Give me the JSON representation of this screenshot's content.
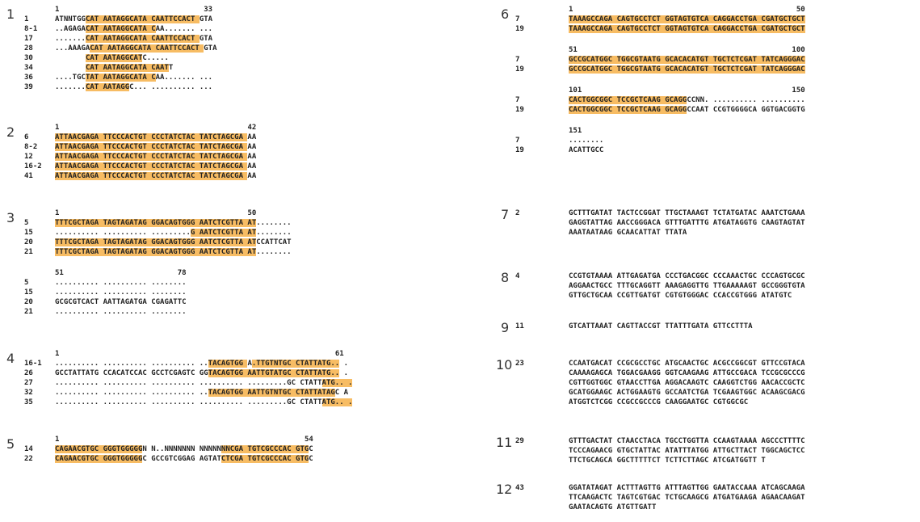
{
  "blocks": [
    {
      "num": "1",
      "rulers": [
        {
          "start": "1",
          "end": "33"
        }
      ],
      "rows": [
        {
          "id": "1",
          "seq": "ATNNTGGCAT AATAGGCATA CAATTCCACT GTA",
          "hl": [
            [
              7,
              33
            ]
          ]
        },
        {
          "id": "8-1",
          "seq": "..AGAGACAT AATAGGCATA CAA....... ...",
          "hl": [
            [
              7,
              23
            ]
          ]
        },
        {
          "id": "17",
          "seq": ".......CAT AATAGGCATA CAATTCCACT GTA",
          "hl": [
            [
              7,
              33
            ]
          ]
        },
        {
          "id": "28",
          "seq": "...AAAGACAT AATAGGCATA CAATTCCACT GTA",
          "hl": [
            [
              8,
              34
            ]
          ]
        },
        {
          "id": "30",
          "seq": "       CAT AATAGGCATC.....",
          "hl": [
            [
              7,
              20
            ]
          ]
        },
        {
          "id": "34",
          "seq": "       CAT AATAGGCATA CAATT",
          "hl": [
            [
              7,
              26
            ]
          ]
        },
        {
          "id": "36",
          "seq": "....TGCTAT AATAGGCATA CAA....... ...",
          "hl": [
            [
              7,
              23
            ]
          ]
        },
        {
          "id": "39",
          "seq": ".......CAT AATAGGC... .......... ...",
          "hl": [
            [
              7,
              17
            ]
          ]
        }
      ]
    },
    {
      "num": "2",
      "rulers": [
        {
          "start": "1",
          "end": "42"
        }
      ],
      "rows": [
        {
          "id": "6",
          "seq": "ATTAACGAGA TTCCCACTGT CCCTATCTAC TATCTAGCGA AA",
          "hl": [
            [
              0,
              44
            ]
          ]
        },
        {
          "id": "8-2",
          "seq": "ATTAACGAGA TTCCCACTGT CCCTATCTAC TATCTAGCGA AA",
          "hl": [
            [
              0,
              44
            ]
          ]
        },
        {
          "id": "12",
          "seq": "ATTAACGAGA TTCCCACTGT CCCTATCTAC TATCTAGCGA AA",
          "hl": [
            [
              0,
              44
            ]
          ]
        },
        {
          "id": "16-2",
          "seq": "ATTAACGAGA TTCCCACTGT CCCTATCTAC TATCTAGCGA AA",
          "hl": [
            [
              0,
              44
            ]
          ]
        },
        {
          "id": "41",
          "seq": "ATTAACGAGA TTCCCACTGT CCCTATCTAC TATCTAGCGA AA",
          "hl": [
            [
              0,
              44
            ]
          ]
        }
      ]
    },
    {
      "num": "3",
      "rulers": [
        {
          "start": "1",
          "end": "50"
        },
        {
          "start": "51",
          "end": "78"
        }
      ],
      "rows": [
        {
          "id": "5",
          "seq": "TTTCGCTAGA TAGTAGATAG GGACAGTGGG AATCTCGTTA AT........",
          "hl": [
            [
              0,
              46
            ]
          ]
        },
        {
          "id": "15",
          "seq": ".......... .......... .........G AATCTCGTTA AT........",
          "hl": [
            [
              31,
              46
            ]
          ]
        },
        {
          "id": "20",
          "seq": "TTTCGCTAGA TAGTAGATAG GGACAGTGGG AATCTCGTTA ATCCATTCAT",
          "hl": [
            [
              0,
              46
            ]
          ]
        },
        {
          "id": "21",
          "seq": "TTTCGCTAGA TAGTAGATAG GGACAGTGGG AATCTCGTTA AT........",
          "hl": [
            [
              0,
              46
            ]
          ]
        }
      ],
      "rows2": [
        {
          "id": "5",
          "seq": ".......... .......... ........"
        },
        {
          "id": "15",
          "seq": ".......... .......... ........"
        },
        {
          "id": "20",
          "seq": "GCGCGTCACT AATTAGATGA CGAGATTC"
        },
        {
          "id": "21",
          "seq": ".......... .......... ........"
        }
      ]
    },
    {
      "num": "4",
      "rulers": [
        {
          "start": "1",
          "end": "61"
        }
      ],
      "rows": [
        {
          "id": "16-1",
          "seq": ".......... .......... .......... ..TACAGTGG A.TTGTNTGC CTATTATG.. .",
          "hl": [
            [
              35,
              44
            ],
            [
              45,
              65
            ]
          ]
        },
        {
          "id": "26",
          "seq": "GCCTATTATG CCACATCCAC GCCTCGAGTC GGTACAGTGG AATTGTATGC CTATTATG.. .",
          "hl": [
            [
              35,
              65
            ]
          ]
        },
        {
          "id": "27",
          "seq": ".......... .......... .......... .......... .........GC CTATTATG.. .",
          "hl": [
            [
              61,
              69
            ]
          ]
        },
        {
          "id": "32",
          "seq": ".......... .......... .......... ..TACAGTGG AATTGTNTGC CTATTATAGC A",
          "hl": [
            [
              35,
              64
            ]
          ]
        },
        {
          "id": "35",
          "seq": ".......... .......... .......... .......... .........GC CTATTATG.. .",
          "hl": [
            [
              61,
              69
            ]
          ]
        }
      ]
    },
    {
      "num": "5",
      "rulers": [
        {
          "start": "1",
          "end": "54"
        }
      ],
      "rows": [
        {
          "id": "14",
          "seq": "CAGAACGTGC GGGTGGGGGN N..NNNNNNN NNNNNNNCGA TGTCGCCCAC GTGC",
          "hl": [
            [
              0,
              20
            ],
            [
              38,
              58
            ]
          ]
        },
        {
          "id": "22",
          "seq": "CAGAACGTGC GGGTGGGGGC GCCGTCGGAG AGTATCTCGA TGTCGCCCAC GTGC",
          "hl": [
            [
              0,
              20
            ],
            [
              38,
              58
            ]
          ]
        }
      ]
    },
    {
      "num": "6",
      "rulers": [
        {
          "start": "1",
          "end": "50"
        },
        {
          "start": "51",
          "end": "100"
        },
        {
          "start": "101",
          "end": "150"
        },
        {
          "start": "151",
          "end": ""
        }
      ],
      "groups": [
        [
          {
            "id": "7",
            "seq": "TAAAGCCAGA CAGTGCCTCT GGTAGTGTCA CAGGACCTGA CGATGCTGCT",
            "hl": [
              [
                0,
                54
              ]
            ]
          },
          {
            "id": "19",
            "seq": "TAAAGCCAGA CAGTGCCTCT GGTAGTGTCA CAGGACCTGA CGATGCTGCT",
            "hl": [
              [
                0,
                54
              ]
            ]
          }
        ],
        [
          {
            "id": "7",
            "seq": "GCCGCATGGC TGGCGTAATG GCACACATGT TGCTCTCGAT TATCAGGGAC",
            "hl": [
              [
                0,
                54
              ]
            ]
          },
          {
            "id": "19",
            "seq": "GCCGCATGGC TGGCGTAATG GCACACATGT TGCTCTCGAT TATCAGGGAC",
            "hl": [
              [
                0,
                54
              ]
            ]
          }
        ],
        [
          {
            "id": "7",
            "seq": "CACTGGCGGC TCCGCTCAAG GCAGGCCNN. .......... ..........",
            "hl": [
              [
                0,
                27
              ]
            ]
          },
          {
            "id": "19",
            "seq": "CACTGGCGGC TCCGCTCAAG GCAGGCCAAT CCGTGGGGCA GGTGACGGTG",
            "hl": [
              [
                0,
                27
              ]
            ]
          }
        ],
        [
          {
            "id": "7",
            "seq": "........"
          },
          {
            "id": "19",
            "seq": "ACATTGCC"
          }
        ]
      ]
    },
    {
      "num": "7",
      "id": "2",
      "lines": [
        "GCTTTGATAT TACTCCGGAT TTGCTAAAGT TCTATGATAC AAATCTGAAA",
        "GAGGTATTAG AACCGGGACA GTTTGATTTG ATGATAGGTG CAAGTAGTAT",
        "AAATAATAAG GCAACATTAT TTATA"
      ]
    },
    {
      "num": "8",
      "id": "4",
      "lines": [
        "CCGTGTAAAA ATTGAGATGA CCCTGACGGC CCCAAACTGC CCCAGTGCGC",
        "AGGAACTGCC TTTGCAGGTT AAAGAGGTTG TTGAAAAAGT GCCGGGTGTA",
        "GTTGCTGCAA CCGTTGATGT CGTGTGGGAC CCACCGTGGG ATATGTC"
      ]
    },
    {
      "num": "9",
      "id": "11",
      "lines": [
        "GTCATTAAAT CAGTTACCGT TTATTTGATA GTTCCTTTA"
      ]
    },
    {
      "num": "10",
      "id": "23",
      "lines": [
        "CCAATGACAT CCGCGCCTGC ATGCAACTGC ACGCCGGCGT GTTCCGTACA",
        "CAAAAGAGCA TGGACGAAGG GGTCAAGAAG ATTGCCGACA TCCGCGCCCG",
        "CGTTGGTGGC GTAACCTTGA AGGACAAGTC CAAGGTCTGG AACACCGCTC",
        "GCATGGAAGC ACTGGAAGTG GCCAATCTGA TCGAAGTGGC ACAAGCGACG",
        "ATGGTCTCGG CCGCCGCCCG CAAGGAATGC CGTGGCGC"
      ]
    },
    {
      "num": "11",
      "id": "29",
      "lines": [
        "GTTTGACTAT CTAACCTACA TGCCTGGTTA CCAAGTAAAA AGCCCTTTTC",
        "TCCCAGAACG GTGCTATTAC ATATTTATGG ATTGCTTACT TGGCAGCTCC",
        "TTCTGCAGCA GGCTTTTTCT TCTTCTTAGC ATCGATGGTT T"
      ]
    },
    {
      "num": "12",
      "id": "43",
      "lines": [
        "GGATATAGAT ACTTTAGTTG ATTTAGTTGG GAATACCAAA ATCAGCAAGA",
        "TTCAAGACTC TAGTCGTGAC TCTGCAAGCG ATGATGAAGA AGAACAAGAT",
        "GAATACAGTG ATGTTGATT"
      ]
    }
  ],
  "colors": {
    "highlight": "#f7bc63",
    "text": "#222222"
  }
}
